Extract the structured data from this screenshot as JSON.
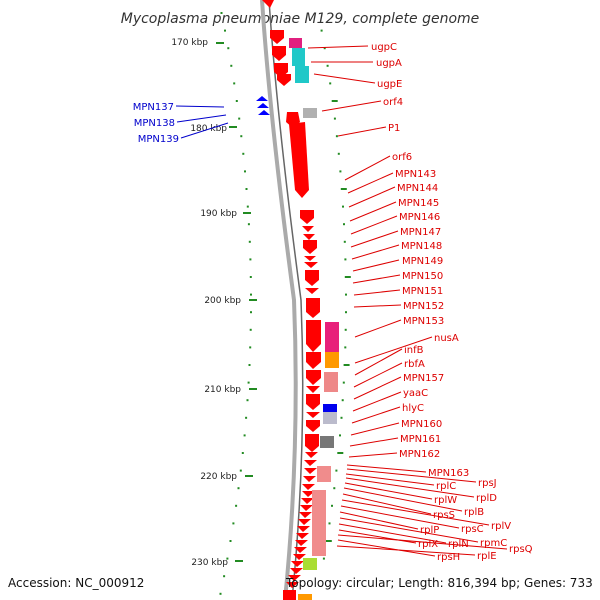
{
  "title": "Mycoplasma pneumoniae M129, complete genome",
  "footer": {
    "accession": "Accession: NC_000912",
    "topology": "Topology: circular; Length: 816,394 bp; Genes: 733"
  },
  "colors": {
    "forward_gene": "#ff0000",
    "reverse_gene": "#0000ff",
    "forward_label": "#dd0000",
    "reverse_label": "#0000cc",
    "backbone": "#999999",
    "tick": "#228b22"
  },
  "scale_labels": [
    {
      "kbp": 170,
      "text": "170 kbp"
    },
    {
      "kbp": 180,
      "text": "180 kbp"
    },
    {
      "kbp": 190,
      "text": "190 kbp"
    },
    {
      "kbp": 200,
      "text": "200 kbp"
    },
    {
      "kbp": 210,
      "text": "210 kbp"
    },
    {
      "kbp": 220,
      "text": "220 kbp"
    },
    {
      "kbp": 230,
      "text": "230 kbp"
    }
  ],
  "reverse_genes": [
    "MPN137",
    "MPN138",
    "MPN139"
  ],
  "forward_genes": [
    "ugpC",
    "ugpA",
    "ugpE",
    "orf4",
    "P1",
    "orf6",
    "MPN143",
    "MPN144",
    "MPN145",
    "MPN146",
    "MPN147",
    "MPN148",
    "MPN149",
    "MPN150",
    "MPN151",
    "MPN152",
    "MPN153",
    "nusA",
    "infB",
    "rbfA",
    "MPN157",
    "yaaC",
    "hlyC",
    "MPN160",
    "MPN161",
    "MPN162",
    "MPN163",
    "rpsJ",
    "rplC",
    "rplD",
    "rplW",
    "rplB",
    "rpsS",
    "rplV",
    "rpsC",
    "rplP",
    "rpmC",
    "rplN",
    "rplX",
    "rpsQ",
    "rpsH",
    "rplE"
  ],
  "cog_blocks": [
    {
      "gene": "ugpC",
      "color": "#e0207f"
    },
    {
      "gene": "ugpA",
      "color": "#20c8c8"
    },
    {
      "gene": "ugpE",
      "color": "#20c8c8"
    },
    {
      "gene": "orf4",
      "color": "#b0b0b0"
    },
    {
      "gene": "MPN153",
      "color": "#e8207a"
    },
    {
      "gene": "nusA",
      "color": "#ff9900"
    },
    {
      "gene": "infB",
      "color": "#ee8888"
    },
    {
      "gene": "yaaC",
      "color": "#0000ee"
    },
    {
      "gene": "hlyC",
      "color": "#bbbbcc"
    },
    {
      "gene": "MPN160",
      "color": "#777777"
    },
    {
      "gene": "MPN163",
      "color": "#f08c8c"
    },
    {
      "gene": "rplC",
      "color": "#f08c8c"
    },
    {
      "gene": "rplP",
      "color": "#aadd33"
    },
    {
      "gene": "rplE",
      "color": "#ff9900"
    }
  ]
}
